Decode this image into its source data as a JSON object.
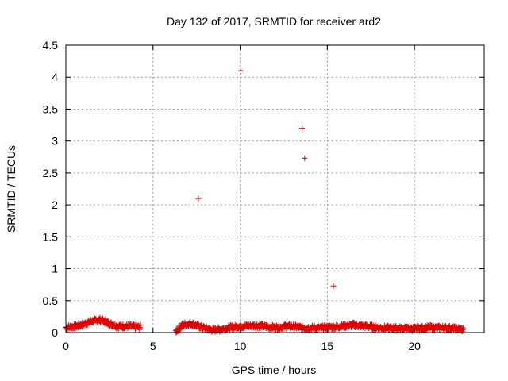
{
  "chart_data": {
    "type": "scatter",
    "title": "Day 132 of 2017, SRMTID for receiver ard2",
    "xlabel": "GPS time / hours",
    "ylabel": "SRMTID / TECUs",
    "xlim": [
      0,
      24
    ],
    "ylim": [
      0,
      4.5
    ],
    "xticks": [
      0,
      5,
      10,
      15,
      20
    ],
    "yticks": [
      0,
      0.5,
      1,
      1.5,
      2,
      2.5,
      3,
      3.5,
      4,
      4.5
    ],
    "xtick_labels": [
      "0",
      "5",
      "10",
      "15",
      "20"
    ],
    "ytick_labels": [
      "0",
      "0.5",
      "1",
      "1.5",
      "2",
      "2.5",
      "3",
      "3.5",
      "4",
      "4.5"
    ],
    "grid": true,
    "marker": "+",
    "color": "#e00000",
    "series": [
      {
        "name": "SRMTID",
        "x": [
          7.6,
          10.05,
          13.55,
          13.7,
          15.35
        ],
        "y": [
          2.1,
          4.1,
          3.2,
          2.73,
          0.73
        ]
      }
    ],
    "baseline_segments": [
      {
        "x_start": 0.0,
        "x_end": 4.3,
        "profile": [
          [
            0.0,
            0.08
          ],
          [
            0.6,
            0.1
          ],
          [
            1.0,
            0.13
          ],
          [
            1.5,
            0.18
          ],
          [
            2.0,
            0.2
          ],
          [
            2.5,
            0.14
          ],
          [
            3.0,
            0.1
          ],
          [
            3.5,
            0.1
          ],
          [
            4.3,
            0.08
          ]
        ],
        "spread": 0.04
      },
      {
        "x_start": 6.3,
        "x_end": 22.8,
        "profile": [
          [
            6.3,
            0.02
          ],
          [
            6.7,
            0.12
          ],
          [
            7.2,
            0.14
          ],
          [
            7.8,
            0.08
          ],
          [
            8.5,
            0.04
          ],
          [
            9.0,
            0.06
          ],
          [
            10.0,
            0.1
          ],
          [
            11.0,
            0.11
          ],
          [
            12.0,
            0.08
          ],
          [
            12.8,
            0.1
          ],
          [
            13.5,
            0.08
          ],
          [
            14.5,
            0.07
          ],
          [
            15.5,
            0.09
          ],
          [
            16.5,
            0.12
          ],
          [
            17.5,
            0.09
          ],
          [
            18.5,
            0.07
          ],
          [
            20.0,
            0.06
          ],
          [
            21.0,
            0.08
          ],
          [
            22.0,
            0.07
          ],
          [
            22.8,
            0.05
          ]
        ],
        "spread": 0.04
      }
    ]
  }
}
